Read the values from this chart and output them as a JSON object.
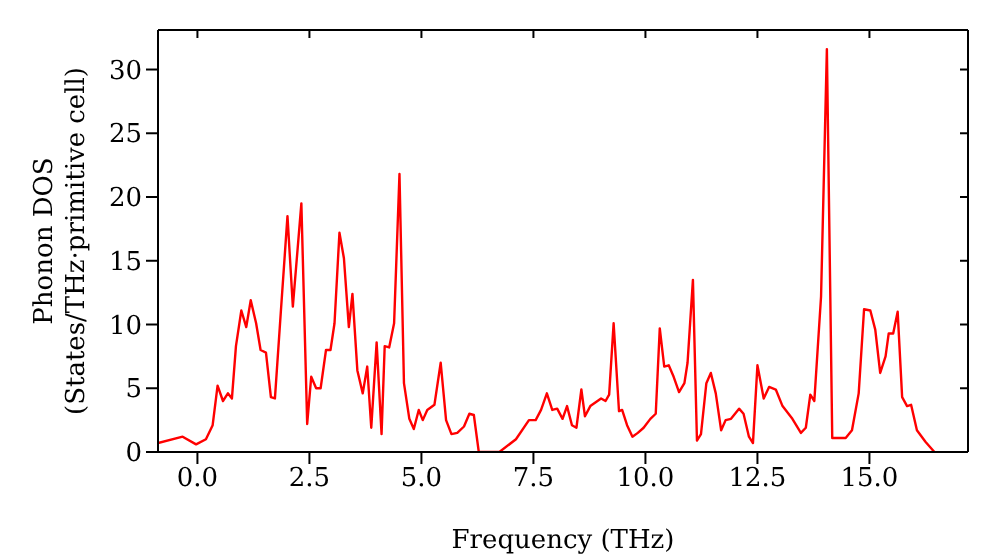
{
  "chart_data": {
    "type": "line",
    "xlabel": "Frequency (THz)",
    "ylabel": "Phonon DOS\n(States/THz·primitive cell)",
    "xlim": [
      -0.88,
      17.2
    ],
    "ylim": [
      0,
      33.1
    ],
    "xticks": [
      {
        "value": 0,
        "label": "0.0"
      },
      {
        "value": 2.5,
        "label": "2.5"
      },
      {
        "value": 5,
        "label": "5.0"
      },
      {
        "value": 7.5,
        "label": "7.5"
      },
      {
        "value": 10,
        "label": "10.0"
      },
      {
        "value": 12.5,
        "label": "12.5"
      },
      {
        "value": 15,
        "label": "15.0"
      }
    ],
    "yticks": [
      0,
      5,
      10,
      15,
      20,
      25,
      30
    ],
    "marker": "none",
    "line_style": "solid",
    "series": [
      {
        "color": "#ff0000",
        "x": [
          -0.88,
          -0.33,
          -0.03,
          0.19,
          0.34,
          0.45,
          0.57,
          0.68,
          0.77,
          0.86,
          0.98,
          1.09,
          1.19,
          1.31,
          1.41,
          1.53,
          1.64,
          1.73,
          1.86,
          2.01,
          2.13,
          2.32,
          2.45,
          2.54,
          2.65,
          2.75,
          2.87,
          2.97,
          3.06,
          3.17,
          3.27,
          3.38,
          3.46,
          3.57,
          3.69,
          3.79,
          3.88,
          4.0,
          4.11,
          4.18,
          4.28,
          4.39,
          4.51,
          4.61,
          4.73,
          4.83,
          4.94,
          5.03,
          5.13,
          5.29,
          5.43,
          5.55,
          5.67,
          5.8,
          5.95,
          6.07,
          6.17,
          6.28,
          6.74,
          7.11,
          7.4,
          7.55,
          7.67,
          7.8,
          7.92,
          8.03,
          8.15,
          8.25,
          8.36,
          8.46,
          8.57,
          8.65,
          8.77,
          8.89,
          9.01,
          9.11,
          9.19,
          9.29,
          9.41,
          9.48,
          9.59,
          9.71,
          9.83,
          9.96,
          10.11,
          10.23,
          10.32,
          10.42,
          10.52,
          10.63,
          10.75,
          10.87,
          10.94,
          11.06,
          11.15,
          11.24,
          11.36,
          11.46,
          11.57,
          11.69,
          11.79,
          11.91,
          12.09,
          12.19,
          12.31,
          12.4,
          12.5,
          12.64,
          12.76,
          12.91,
          13.06,
          13.28,
          13.47,
          13.58,
          13.68,
          13.77,
          13.92,
          14.05,
          14.17,
          14.47,
          14.61,
          14.76,
          14.88,
          15.02,
          15.13,
          15.24,
          15.36,
          15.43,
          15.53,
          15.63,
          15.73,
          15.84,
          15.93,
          16.06,
          16.25,
          16.45
        ],
        "values": [
          0.7,
          1.2,
          0.6,
          1.0,
          2.1,
          5.2,
          4.0,
          4.6,
          4.2,
          8.3,
          11.1,
          9.8,
          11.9,
          10.1,
          8.0,
          7.8,
          4.3,
          4.2,
          10.9,
          18.5,
          11.4,
          19.5,
          2.2,
          5.9,
          5.0,
          5.0,
          8.0,
          8.0,
          10.1,
          17.2,
          15.2,
          9.8,
          12.4,
          6.4,
          4.6,
          6.7,
          1.9,
          8.6,
          1.4,
          8.3,
          8.2,
          10.1,
          21.8,
          5.4,
          2.6,
          1.8,
          3.3,
          2.5,
          3.3,
          3.7,
          7.0,
          2.5,
          1.4,
          1.5,
          2.0,
          3.0,
          2.9,
          0,
          0,
          1.0,
          2.5,
          2.5,
          3.3,
          4.6,
          3.3,
          3.4,
          2.6,
          3.6,
          2.1,
          1.9,
          4.9,
          2.8,
          3.6,
          3.9,
          4.2,
          4.0,
          4.5,
          10.1,
          3.2,
          3.3,
          2.1,
          1.2,
          1.5,
          1.9,
          2.6,
          3.0,
          9.7,
          6.7,
          6.8,
          5.9,
          4.7,
          5.4,
          7.0,
          13.5,
          0.9,
          1.4,
          5.4,
          6.2,
          4.6,
          1.7,
          2.5,
          2.6,
          3.4,
          3.0,
          1.2,
          0.7,
          6.8,
          4.2,
          5.1,
          4.9,
          3.6,
          2.6,
          1.5,
          1.9,
          4.5,
          4.0,
          12.2,
          31.6,
          1.1,
          1.1,
          1.7,
          4.6,
          11.2,
          11.1,
          9.6,
          6.2,
          7.5,
          9.3,
          9.3,
          11.0,
          4.3,
          3.6,
          3.7,
          1.7,
          0.8,
          0
        ]
      }
    ]
  }
}
